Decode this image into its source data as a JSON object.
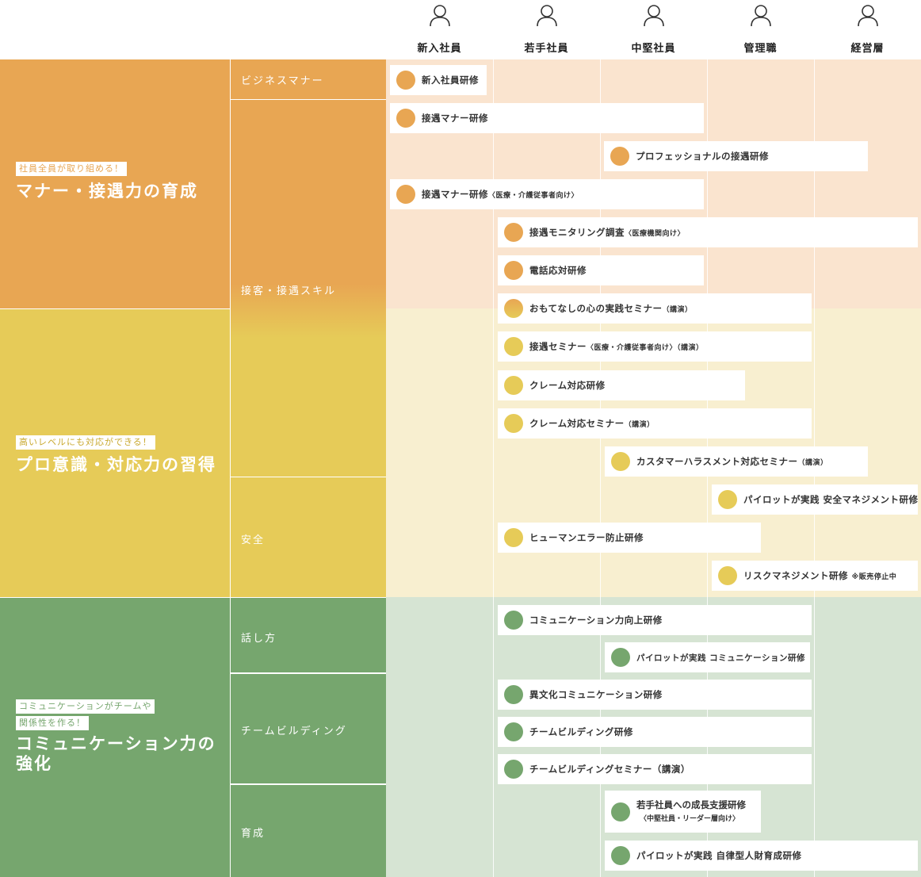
{
  "levels": [
    "新入社員",
    "若手社員",
    "中堅社員",
    "管理職",
    "経営層"
  ],
  "colors": {
    "orange": "#E8A653",
    "yellow": "#E6CB58",
    "green": "#76A66E",
    "orange_bg": "#FAE4CF",
    "yellow_bg": "#F8EFD0",
    "green_bg": "#D6E4D3"
  },
  "categories": [
    {
      "tags": [
        "社員全員が取り組める！"
      ],
      "title": "マナー・接遇力の育成"
    },
    {
      "tags": [
        "高いレベルにも対応ができる！"
      ],
      "title": "プロ意識・対応力の習得"
    },
    {
      "tags": [
        "コミュニケーションがチームや",
        "関係性を作る！"
      ],
      "title": "コミュニケーション力の強化"
    }
  ],
  "subcategories": [
    "ビジネスマナー",
    "接客・接遇スキル",
    "安全",
    "話し方",
    "チームビルディング",
    "育成"
  ],
  "trainings": [
    {
      "label": "新入社員研修",
      "note": ""
    },
    {
      "label": "接遇マナー研修",
      "note": ""
    },
    {
      "label": "プロフェッショナルの接遇研修",
      "note": ""
    },
    {
      "label": "接遇マナー研修",
      "note": "〈医療・介護従事者向け〉"
    },
    {
      "label": "接遇モニタリング調査",
      "note": "〈医療機関向け〉"
    },
    {
      "label": "電話応対研修",
      "note": ""
    },
    {
      "label": "おもてなしの心の実践セミナー",
      "note": "（講演）"
    },
    {
      "label": "接遇セミナー",
      "note": "〈医療・介護従事者向け〉（講演）"
    },
    {
      "label": "クレーム対応研修",
      "note": ""
    },
    {
      "label": "クレーム対応セミナー",
      "note": "（講演）"
    },
    {
      "label": "カスタマーハラスメント対応セミナー",
      "note": "（講演）"
    },
    {
      "label": "パイロットが実践 安全マネジメント研修",
      "note": ""
    },
    {
      "label": "ヒューマンエラー防止研修",
      "note": ""
    },
    {
      "label": "リスクマネジメント研修",
      "note": "※販売停止中"
    },
    {
      "label": "コミュニケーション力向上研修",
      "note": ""
    },
    {
      "label": "パイロットが実践 コミュニケーション研修",
      "note": ""
    },
    {
      "label": "異文化コミュニケーション研修",
      "note": ""
    },
    {
      "label": "チームビルディング研修",
      "note": ""
    },
    {
      "label": "チームビルディングセミナー（講演）",
      "note": ""
    },
    {
      "label": "若手社員への成長支援研修",
      "note": "〈中堅社員・リーダー層向け〉"
    },
    {
      "label": "パイロットが実践 自律型人財育成研修",
      "note": ""
    }
  ]
}
